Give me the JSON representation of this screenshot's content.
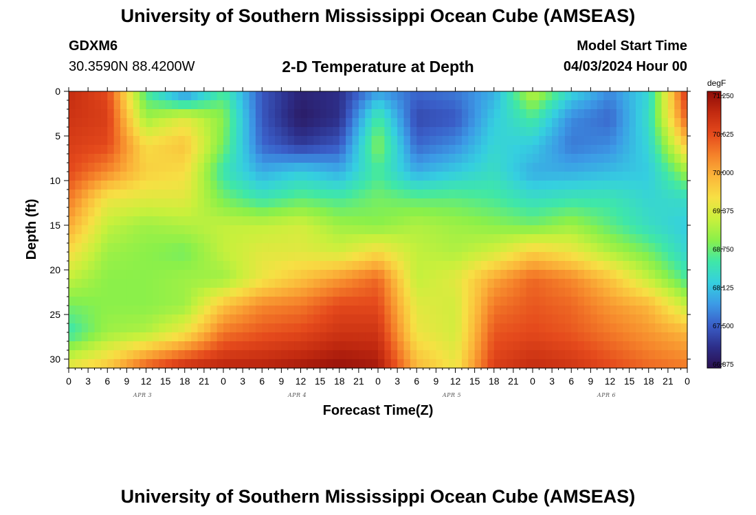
{
  "header": {
    "title": "University of Southern Mississippi Ocean Cube (AMSEAS)",
    "station": "GDXM6",
    "coords": "30.3590N  88.4200W",
    "product": "2-D Temperature at Depth",
    "model_start_label": "Model Start Time",
    "model_start_value": "04/03/2024 Hour 00"
  },
  "footer": {
    "title": "University of Southern Mississippi Ocean Cube (AMSEAS)"
  },
  "chart_data": {
    "type": "heatmap",
    "xlabel": "Forecast Time(Z)",
    "ylabel": "Depth (ft)",
    "x_range_hours": [
      0,
      96
    ],
    "y_range_ft": [
      0,
      31
    ],
    "x_tick_labels": [
      "0",
      "3",
      "6",
      "9",
      "12",
      "15",
      "18",
      "21",
      "0",
      "3",
      "6",
      "9",
      "12",
      "15",
      "18",
      "21",
      "0",
      "3",
      "6",
      "9",
      "12",
      "15",
      "18",
      "21",
      "0",
      "3",
      "6",
      "9",
      "12",
      "15",
      "18",
      "21",
      "0"
    ],
    "day_labels": [
      "APR 3",
      "APR 4",
      "APR 5",
      "APR 6"
    ],
    "y_ticks": [
      0,
      5,
      10,
      15,
      20,
      25,
      30
    ],
    "colorbar": {
      "unit": "degF",
      "min": 66.875,
      "max": 71.25,
      "tick_labels": [
        "71.250",
        "70.625",
        "70.000",
        "69.375",
        "68.750",
        "68.125",
        "67.500",
        "66.875"
      ],
      "colors": [
        "#2a1050",
        "#2d2f8a",
        "#3a5ec8",
        "#3c9ae6",
        "#35cfe0",
        "#3fe7a8",
        "#8af04a",
        "#c9f03c",
        "#f7e044",
        "#fbb63a",
        "#f5822a",
        "#e54a1c",
        "#c22a10",
        "#8e0c08"
      ]
    },
    "depth_levels_ft": [
      0,
      3,
      6,
      9,
      12,
      15,
      18,
      21,
      24,
      27,
      31
    ],
    "times_hours": [
      0,
      6,
      12,
      18,
      24,
      30,
      36,
      42,
      48,
      54,
      60,
      66,
      72,
      78,
      84,
      90,
      96
    ],
    "values_degF": [
      [
        70.9,
        70.6,
        68.6,
        67.7,
        68.6,
        67.5,
        67.1,
        67.2,
        67.9,
        67.6,
        67.7,
        68.0,
        69.2,
        68.3,
        67.8,
        68.3,
        70.8
      ],
      [
        70.8,
        70.7,
        69.0,
        69.4,
        68.9,
        67.5,
        67.0,
        67.2,
        68.6,
        67.4,
        67.5,
        68.2,
        68.6,
        67.8,
        67.6,
        68.4,
        70.5
      ],
      [
        70.7,
        70.6,
        69.6,
        69.8,
        68.8,
        67.6,
        67.3,
        67.5,
        68.9,
        67.6,
        67.8,
        68.3,
        68.2,
        67.7,
        67.8,
        68.3,
        69.8
      ],
      [
        70.6,
        70.2,
        69.7,
        69.6,
        68.5,
        68.0,
        68.2,
        68.0,
        68.6,
        68.0,
        68.2,
        68.4,
        68.0,
        68.0,
        68.1,
        68.2,
        69.0
      ],
      [
        70.3,
        69.5,
        69.4,
        69.4,
        68.8,
        68.5,
        68.7,
        68.6,
        68.8,
        68.7,
        68.7,
        68.6,
        68.4,
        68.5,
        68.5,
        68.3,
        68.4
      ],
      [
        70.0,
        69.2,
        69.0,
        69.1,
        69.2,
        69.2,
        69.3,
        69.0,
        68.9,
        69.1,
        69.0,
        68.9,
        68.8,
        69.0,
        68.7,
        68.4,
        68.2
      ],
      [
        69.6,
        69.0,
        68.9,
        68.8,
        69.2,
        69.4,
        69.4,
        69.3,
        69.6,
        69.2,
        69.1,
        69.3,
        69.7,
        69.5,
        69.1,
        68.8,
        68.3
      ],
      [
        69.2,
        68.9,
        68.9,
        69.0,
        69.0,
        69.5,
        69.8,
        70.1,
        70.4,
        69.2,
        69.4,
        70.0,
        70.4,
        70.2,
        69.8,
        69.2,
        68.6
      ],
      [
        68.8,
        68.9,
        68.9,
        69.0,
        69.8,
        70.2,
        70.3,
        70.6,
        70.6,
        69.4,
        69.3,
        70.3,
        70.5,
        70.4,
        70.1,
        69.9,
        69.2
      ],
      [
        68.5,
        69.0,
        69.1,
        69.5,
        70.3,
        70.5,
        70.6,
        70.8,
        70.8,
        69.5,
        69.3,
        70.5,
        70.6,
        70.5,
        70.3,
        70.1,
        69.9
      ],
      [
        69.5,
        69.8,
        70.5,
        70.9,
        71.0,
        71.0,
        71.1,
        71.2,
        71.1,
        69.9,
        69.5,
        70.7,
        70.9,
        70.8,
        70.6,
        70.4,
        70.3
      ]
    ]
  }
}
